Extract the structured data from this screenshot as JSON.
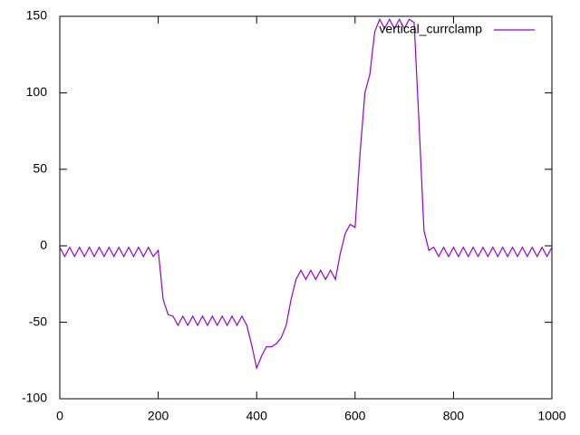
{
  "chart_data": {
    "type": "line",
    "x": [
      0,
      10,
      20,
      30,
      40,
      50,
      60,
      70,
      80,
      90,
      100,
      110,
      120,
      130,
      140,
      150,
      160,
      170,
      180,
      190,
      200,
      210,
      220,
      230,
      240,
      250,
      260,
      270,
      280,
      290,
      300,
      310,
      320,
      330,
      340,
      350,
      360,
      370,
      380,
      390,
      400,
      410,
      420,
      430,
      440,
      450,
      460,
      470,
      480,
      490,
      500,
      510,
      520,
      530,
      540,
      550,
      560,
      570,
      580,
      590,
      600,
      610,
      620,
      630,
      640,
      650,
      660,
      670,
      680,
      690,
      700,
      710,
      720,
      730,
      740,
      750,
      760,
      770,
      780,
      790,
      800,
      810,
      820,
      830,
      840,
      850,
      860,
      870,
      880,
      890,
      900,
      910,
      920,
      930,
      940,
      950,
      960,
      970,
      980,
      990,
      1000
    ],
    "series": [
      {
        "name": "vertical_currclamp",
        "color": "#9400d3",
        "values": [
          -1,
          -7,
          -1,
          -7,
          -1,
          -7,
          -1,
          -7,
          -1,
          -7,
          -1,
          -7,
          -1,
          -7,
          -1,
          -7,
          -1,
          -7,
          -1,
          -7,
          -3,
          -35,
          -45,
          -46,
          -52,
          -46,
          -52,
          -46,
          -52,
          -46,
          -52,
          -46,
          -52,
          -46,
          -52,
          -46,
          -52,
          -46,
          -52,
          -65,
          -80,
          -72,
          -66,
          -66,
          -64,
          -60,
          -52,
          -35,
          -22,
          -16,
          -22,
          -16,
          -22,
          -16,
          -22,
          -16,
          -22,
          -5,
          8,
          14,
          12,
          60,
          100,
          112,
          140,
          148,
          142,
          148,
          142,
          148,
          142,
          148,
          146,
          80,
          10,
          -3,
          -1,
          -7,
          -1,
          -7,
          -1,
          -7,
          -1,
          -7,
          -1,
          -7,
          -1,
          -7,
          -1,
          -7,
          -1,
          -7,
          -1,
          -7,
          -1,
          -7,
          -1,
          -7,
          -1,
          -7,
          -1
        ]
      }
    ],
    "xlim": [
      0,
      1000
    ],
    "ylim": [
      -100,
      150
    ],
    "xticks": [
      0,
      200,
      400,
      600,
      800,
      1000
    ],
    "yticks": [
      -100,
      -50,
      0,
      50,
      100,
      150
    ],
    "legend": "top-right"
  }
}
